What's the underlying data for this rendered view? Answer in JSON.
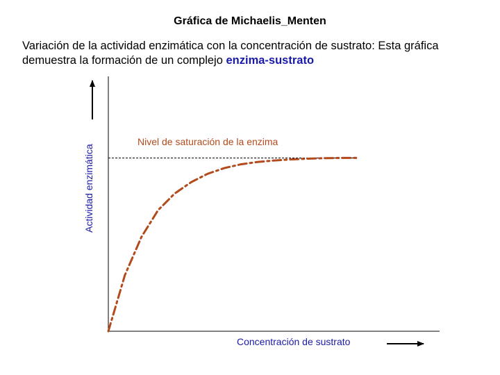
{
  "chart_data": {
    "type": "line",
    "title": "Gráfica de Michaelis_Menten",
    "subtitle_prefix": "Variación de la actividad enzimática con la concentración de sustrato: Esta gráfica demuestra la formación de un complejo ",
    "subtitle_highlight": "enzima-sustrato",
    "xlabel": "Concentración de sustrato",
    "ylabel": "Actividad enzimática",
    "annotation": "Nivel de saturación de la enzima",
    "xlim": [
      0,
      100
    ],
    "ylim": [
      0,
      100
    ],
    "saturation_level": 68,
    "series": [
      {
        "x": [
          0,
          5,
          10,
          15,
          20,
          25,
          30,
          35,
          40,
          45,
          50,
          55,
          60,
          65,
          70,
          75
        ],
        "y": [
          0,
          22,
          37,
          47.5,
          54,
          58.5,
          61.8,
          64,
          65.5,
          66.4,
          67,
          67.4,
          67.7,
          67.9,
          68,
          68
        ]
      }
    ],
    "grid": false,
    "colors": {
      "curve": "#b24a1c",
      "axis": "#000000",
      "labels": "#1a1aa8",
      "reference_line": "#000000"
    }
  }
}
